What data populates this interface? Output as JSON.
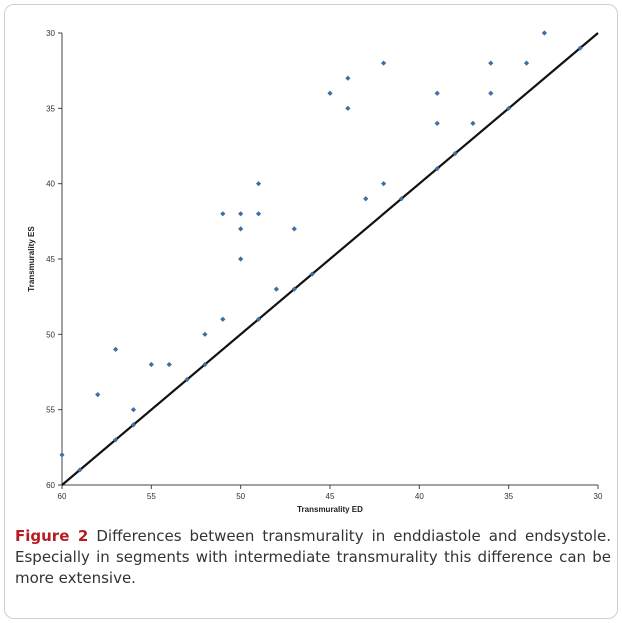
{
  "figure": {
    "label": "Figure 2",
    "caption": "Differences between transmurality in enddiastole and endsystole. Especially in segments with intermediate transmurality this difference can be more extensive."
  },
  "colors": {
    "point": "#3d6fa5",
    "line": "#111111",
    "axis": "#444444"
  },
  "chart_data": {
    "type": "scatter",
    "title": "",
    "xlabel": "Transmurality ED",
    "ylabel": "Transmurality ES",
    "xlim": [
      60,
      30
    ],
    "ylim": [
      60,
      30
    ],
    "x_ticks": [
      60,
      55,
      50,
      45,
      40,
      35,
      30
    ],
    "y_ticks": [
      60,
      55,
      50,
      45,
      40,
      35,
      30
    ],
    "grid": false,
    "legend": "none",
    "reference_line": {
      "from": [
        60,
        60
      ],
      "to": [
        30,
        30
      ]
    },
    "points": [
      [
        60,
        58
      ],
      [
        58,
        54
      ],
      [
        57,
        51
      ],
      [
        57,
        57
      ],
      [
        56,
        55
      ],
      [
        56,
        56
      ],
      [
        55,
        52
      ],
      [
        54,
        52
      ],
      [
        53,
        53
      ],
      [
        52,
        52
      ],
      [
        52,
        50
      ],
      [
        51,
        49
      ],
      [
        51,
        42
      ],
      [
        50,
        42
      ],
      [
        50,
        43
      ],
      [
        50,
        45
      ],
      [
        49,
        42
      ],
      [
        49,
        40
      ],
      [
        49,
        49
      ],
      [
        48,
        47
      ],
      [
        47,
        47
      ],
      [
        47,
        43
      ],
      [
        45,
        34
      ],
      [
        44,
        33
      ],
      [
        44,
        35
      ],
      [
        43,
        41
      ],
      [
        42,
        32
      ],
      [
        42,
        40
      ],
      [
        41,
        41
      ],
      [
        39,
        34
      ],
      [
        39,
        36
      ],
      [
        39,
        39
      ],
      [
        37,
        36
      ],
      [
        36,
        32
      ],
      [
        36,
        34
      ],
      [
        35,
        35
      ],
      [
        34,
        32
      ],
      [
        33,
        30
      ],
      [
        31,
        31
      ],
      [
        38,
        38
      ],
      [
        46,
        46
      ],
      [
        59,
        59
      ]
    ]
  }
}
